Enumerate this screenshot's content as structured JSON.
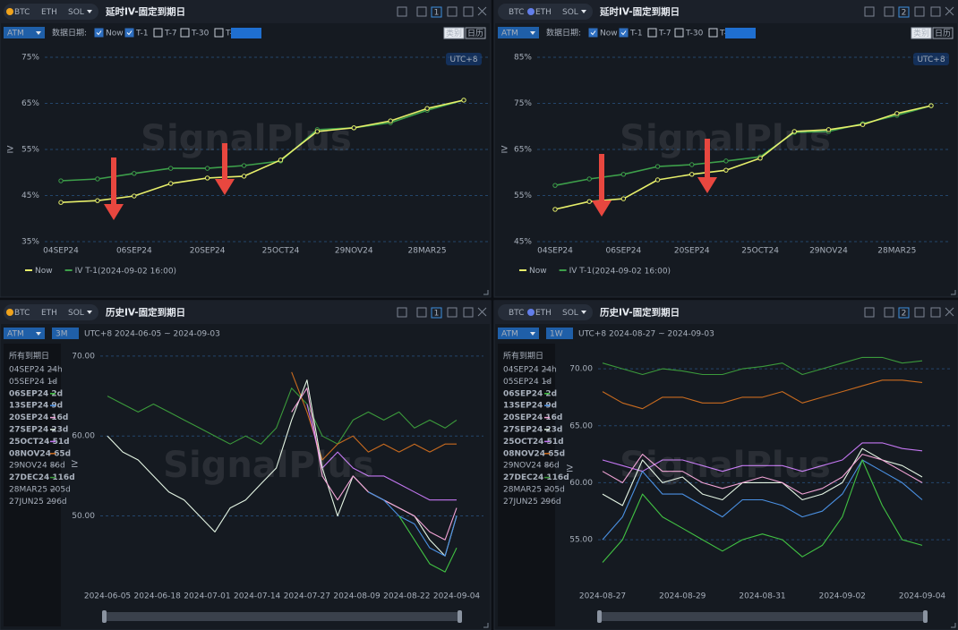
{
  "watermark": "SignalPlus",
  "panels": [
    {
      "tabs": [
        "BTC",
        "ETH",
        "SOL"
      ],
      "active_tab": 0,
      "title": "延时IV-固定到期日",
      "badge": "1",
      "dropdown": "ATM",
      "date_label": "数据日期:",
      "checks": [
        {
          "label": "Now",
          "checked": true
        },
        {
          "label": "T-1",
          "checked": true
        },
        {
          "label": "T-7",
          "checked": false
        },
        {
          "label": "T-30",
          "checked": false
        },
        {
          "label": "T-",
          "checked": false
        }
      ],
      "buttons": [
        "类别",
        "日历"
      ],
      "timezone": "UTC+8"
    },
    {
      "tabs": [
        "BTC",
        "ETH",
        "SOL"
      ],
      "active_tab": 1,
      "title": "延时IV-固定到期日",
      "badge": "2",
      "dropdown": "ATM",
      "date_label": "数据日期:",
      "checks": [
        {
          "label": "Now",
          "checked": true
        },
        {
          "label": "T-1",
          "checked": true
        },
        {
          "label": "T-7",
          "checked": false
        },
        {
          "label": "T-30",
          "checked": false
        },
        {
          "label": "T-",
          "checked": false
        }
      ],
      "buttons": [
        "类别",
        "日历"
      ],
      "timezone": "UTC+8"
    },
    {
      "tabs": [
        "BTC",
        "ETH",
        "SOL"
      ],
      "active_tab": 0,
      "title": "历史IV-固定到期日",
      "badge": "1",
      "dropdown": "ATM",
      "range": "3M",
      "range_text": "UTC+8 2024-06-05 ~ 2024-09-03"
    },
    {
      "tabs": [
        "BTC",
        "ETH",
        "SOL"
      ],
      "active_tab": 1,
      "title": "历史IV-固定到期日",
      "badge": "2",
      "dropdown": "ATM",
      "range": "1W",
      "range_text": "UTC+8 2024-08-27 ~ 2024-09-03"
    }
  ],
  "chart_data": [
    {
      "type": "line",
      "y_label": "IV",
      "legend_note": "(2024-09-02 16:00)",
      "categories": [
        "04SEP24",
        null,
        "06SEP24",
        null,
        "20SEP24",
        null,
        "25OCT24",
        null,
        "29NOV24",
        null,
        "28MAR25",
        null
      ],
      "series": [
        {
          "name": "Now",
          "color": "#e6ee6a",
          "values": [
            43.5,
            43.9,
            44.9,
            47.6,
            48.8,
            49.2,
            52.7,
            58.9,
            59.7,
            61.2,
            63.9,
            65.7
          ]
        },
        {
          "name": "IV T-1",
          "color": "#3d9f4a",
          "values": [
            48.2,
            48.6,
            49.8,
            50.9,
            50.9,
            51.5,
            52.5,
            59.3,
            59.7,
            60.8,
            63.5,
            65.7
          ]
        }
      ],
      "ylim": [
        35,
        75
      ],
      "yticks": [
        {
          "value": 35,
          "label": "35%"
        },
        {
          "value": 45,
          "label": "45%"
        },
        {
          "value": 55,
          "label": "55%"
        },
        {
          "value": 65,
          "label": "65%"
        },
        {
          "value": 75,
          "label": "75%"
        }
      ],
      "grid": true
    },
    {
      "type": "line",
      "y_label": "IV",
      "legend_note": "(2024-09-02 16:00)",
      "categories": [
        "04SEP24",
        null,
        "06SEP24",
        null,
        "20SEP24",
        null,
        "25OCT24",
        null,
        "29NOV24",
        null,
        "28MAR25",
        null
      ],
      "series": [
        {
          "name": "Now",
          "color": "#e6ee6a",
          "values": [
            52,
            53.7,
            54.3,
            58.4,
            59.6,
            60.5,
            63.1,
            68.9,
            69.3,
            70.4,
            72.8,
            74.5
          ]
        },
        {
          "name": "IV T-1",
          "color": "#3d9f4a",
          "values": [
            57.2,
            58.6,
            59.6,
            61.3,
            61.7,
            62.5,
            63.4,
            68.7,
            68.9,
            70.6,
            72.4,
            74.5
          ]
        }
      ],
      "ylim": [
        45,
        85
      ],
      "yticks": [
        {
          "value": 45,
          "label": "45%"
        },
        {
          "value": 55,
          "label": "55%"
        },
        {
          "value": 65,
          "label": "65%"
        },
        {
          "value": 75,
          "label": "75%"
        },
        {
          "value": 85,
          "label": "85%"
        }
      ],
      "grid": true
    },
    {
      "type": "timeline",
      "y_label": "IV",
      "legend_title": "所有到期日",
      "x": [
        "2024-06-05",
        "2024-06-09",
        "2024-06-13",
        "2024-06-17",
        "2024-06-21",
        "2024-06-25",
        "2024-06-29",
        "2024-07-03",
        "2024-07-07",
        "2024-07-11",
        "2024-07-15",
        "2024-07-19",
        "2024-07-23",
        "2024-07-27",
        "2024-07-31",
        "2024-08-04",
        "2024-08-08",
        "2024-08-12",
        "2024-08-16",
        "2024-08-20",
        "2024-08-24",
        "2024-08-28",
        "2024-09-01",
        "2024-09-04"
      ],
      "xlim": [
        "2024-06-05",
        "2024-09-04"
      ],
      "xticks": [
        "2024-06-05",
        "2024-06-18",
        "2024-07-01",
        "2024-07-14",
        "2024-07-27",
        "2024-08-09",
        "2024-08-22",
        "2024-09-04"
      ],
      "series": [
        {
          "name": "04SEP24 24h",
          "color": "#6b7079",
          "active": false
        },
        {
          "name": "05SEP24 1d",
          "color": "#6b7079",
          "active": false
        },
        {
          "name": "06SEP24 2d",
          "color": "#41c243",
          "active": true,
          "values": [
            null,
            null,
            null,
            null,
            null,
            null,
            null,
            null,
            null,
            null,
            null,
            null,
            null,
            null,
            null,
            null,
            null,
            null,
            null,
            50,
            47,
            44,
            43,
            46
          ]
        },
        {
          "name": "13SEP24 9d",
          "color": "#4a90e2",
          "active": true,
          "values": [
            null,
            null,
            null,
            null,
            null,
            null,
            null,
            null,
            null,
            null,
            null,
            null,
            null,
            null,
            null,
            null,
            null,
            53,
            52,
            50,
            49,
            46,
            45,
            50
          ]
        },
        {
          "name": "20SEP24 16d",
          "color": "#f2a3d6",
          "active": true,
          "values": [
            null,
            null,
            null,
            null,
            null,
            null,
            null,
            null,
            null,
            null,
            null,
            null,
            63,
            66,
            55,
            52,
            55,
            53,
            52,
            51,
            50,
            48,
            47,
            51
          ]
        },
        {
          "name": "27SEP24 23d",
          "color": "#e4f5e4",
          "active": true,
          "values": [
            60,
            58,
            57,
            55,
            53,
            52,
            50,
            48,
            51,
            52,
            54,
            56,
            62,
            67,
            56,
            50,
            55,
            53,
            52,
            51,
            50,
            47,
            45,
            50
          ]
        },
        {
          "name": "25OCT24 51d",
          "color": "#c477f2",
          "active": true,
          "values": [
            null,
            null,
            null,
            null,
            null,
            null,
            null,
            null,
            null,
            null,
            null,
            null,
            null,
            64,
            56,
            58,
            56,
            55,
            55,
            54,
            53,
            52,
            52,
            52
          ]
        },
        {
          "name": "08NOV24 65d",
          "color": "#c96b1f",
          "active": true,
          "values": [
            null,
            null,
            null,
            null,
            null,
            null,
            null,
            null,
            null,
            null,
            null,
            null,
            68,
            63,
            57,
            59,
            60,
            58,
            59,
            58,
            59,
            58,
            59,
            59
          ]
        },
        {
          "name": "29NOV24 86d",
          "color": "#6b7079",
          "active": false
        },
        {
          "name": "27DEC24 116d",
          "color": "#3b9a3b",
          "active": true,
          "values": [
            65,
            64,
            63,
            64,
            63,
            62,
            61,
            60,
            59,
            60,
            59,
            61,
            66,
            64,
            60,
            59,
            62,
            63,
            62,
            63,
            61,
            62,
            61,
            62
          ]
        },
        {
          "name": "28MAR25 205d",
          "color": "#6b7079",
          "active": false
        },
        {
          "name": "27JUN25 296d",
          "color": "#6b7079",
          "active": false
        }
      ],
      "ylim": [
        42,
        71
      ],
      "yticks": [
        {
          "value": 50,
          "label": "50.00"
        },
        {
          "value": 60,
          "label": "60.00"
        },
        {
          "value": 70,
          "label": "70.00"
        }
      ],
      "grid": true
    },
    {
      "type": "timeline",
      "y_label": "IV",
      "legend_title": "所有到期日",
      "x": [
        "2024-08-27 00:00",
        "2024-08-27 12:00",
        "2024-08-28 00:00",
        "2024-08-28 12:00",
        "2024-08-29 00:00",
        "2024-08-29 12:00",
        "2024-08-30 00:00",
        "2024-08-30 12:00",
        "2024-08-31 00:00",
        "2024-08-31 12:00",
        "2024-09-01 00:00",
        "2024-09-01 12:00",
        "2024-09-02 00:00",
        "2024-09-02 12:00",
        "2024-09-03 00:00",
        "2024-09-03 12:00",
        "2024-09-04 00:00"
      ],
      "xlim": [
        "2024-08-27",
        "2024-09-04"
      ],
      "xticks": [
        "2024-08-27",
        "2024-08-29",
        "2024-08-31",
        "2024-09-02",
        "2024-09-04"
      ],
      "series": [
        {
          "name": "04SEP24 24h",
          "color": "#6b7079",
          "active": false
        },
        {
          "name": "05SEP24 1d",
          "color": "#6b7079",
          "active": false
        },
        {
          "name": "06SEP24 2d",
          "color": "#41c243",
          "active": true,
          "values": [
            53,
            55,
            59,
            57,
            56,
            55,
            54,
            55,
            55.5,
            55,
            53.5,
            54.5,
            57,
            62,
            58,
            55,
            54.5
          ]
        },
        {
          "name": "13SEP24 9d",
          "color": "#4a90e2",
          "active": true,
          "values": [
            55,
            57,
            61,
            59,
            59,
            58,
            57,
            58.5,
            58.5,
            58,
            57,
            57.5,
            59,
            62,
            61,
            60,
            58.5
          ]
        },
        {
          "name": "20SEP24 16d",
          "color": "#f2a3d6",
          "active": true,
          "values": [
            61,
            60,
            62.5,
            61,
            61,
            60,
            59.5,
            60,
            60.5,
            60,
            59,
            59.5,
            60.5,
            62.5,
            62,
            61,
            60
          ]
        },
        {
          "name": "27SEP24 23d",
          "color": "#e4f5e4",
          "active": true,
          "values": [
            59,
            58,
            62,
            60,
            60.5,
            59,
            58.5,
            60,
            60,
            60,
            58.5,
            59,
            60,
            63,
            62,
            61.5,
            60.5
          ]
        },
        {
          "name": "25OCT24 51d",
          "color": "#c477f2",
          "active": true,
          "values": [
            62,
            61.5,
            61,
            62,
            62,
            61.5,
            61,
            61.5,
            61.5,
            61.5,
            61,
            61.5,
            62,
            63.5,
            63.5,
            63,
            62.8
          ]
        },
        {
          "name": "08NOV24 65d",
          "color": "#c96b1f",
          "active": true,
          "values": [
            68,
            67,
            66.5,
            67.5,
            67.5,
            67,
            67,
            67.5,
            67.5,
            68,
            67,
            67.5,
            68,
            68.5,
            69,
            69,
            68.8
          ]
        },
        {
          "name": "29NOV24 86d",
          "color": "#6b7079",
          "active": false
        },
        {
          "name": "27DEC24 116d",
          "color": "#3b9a3b",
          "active": true,
          "values": [
            70.5,
            70,
            69.5,
            70,
            69.8,
            69.5,
            69.5,
            70,
            70.2,
            70.5,
            69.5,
            70,
            70.5,
            71,
            71,
            70.5,
            70.7
          ]
        },
        {
          "name": "28MAR25 205d",
          "color": "#6b7079",
          "active": false
        },
        {
          "name": "27JUN25 296d",
          "color": "#6b7079",
          "active": false
        }
      ],
      "ylim": [
        51,
        71.5
      ],
      "yticks": [
        {
          "value": 55,
          "label": "55.00"
        },
        {
          "value": 60,
          "label": "60.00"
        },
        {
          "value": 65,
          "label": "65.00"
        },
        {
          "value": 70,
          "label": "70.00"
        }
      ],
      "grid": true
    }
  ]
}
